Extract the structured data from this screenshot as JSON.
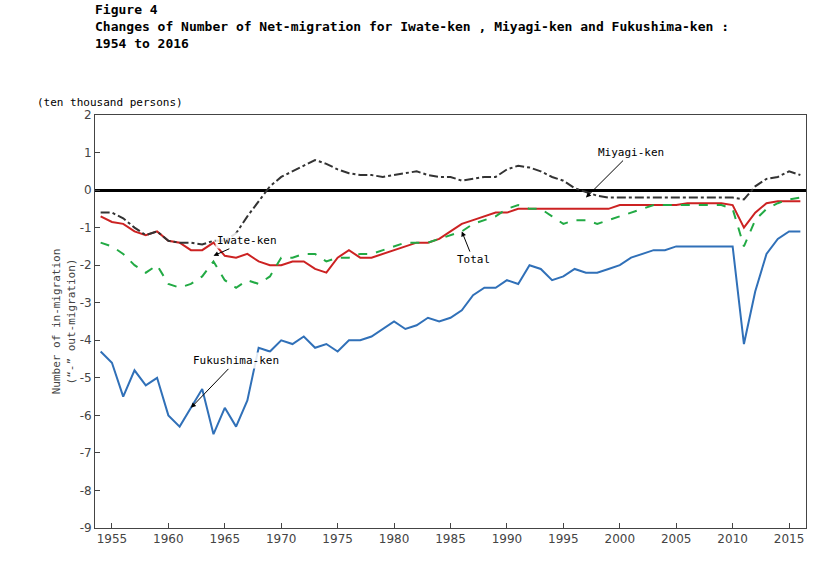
{
  "chart_data": {
    "type": "line",
    "title": "Figure 4",
    "subtitle": [
      "Changes of Number of Net-migration for Iwate-ken , Miyagi-ken and Fukushima-ken :",
      "1954 to 2016"
    ],
    "ylabel": [
      "Number of in-migration",
      "(“-” out-migration)"
    ],
    "x": [
      1954,
      1955,
      1956,
      1957,
      1958,
      1959,
      1960,
      1961,
      1962,
      1963,
      1964,
      1965,
      1966,
      1967,
      1968,
      1969,
      1970,
      1971,
      1972,
      1973,
      1974,
      1975,
      1976,
      1977,
      1978,
      1979,
      1980,
      1981,
      1982,
      1983,
      1984,
      1985,
      1986,
      1987,
      1988,
      1989,
      1990,
      1991,
      1992,
      1993,
      1994,
      1995,
      1996,
      1997,
      1998,
      1999,
      2000,
      2001,
      2002,
      2003,
      2004,
      2005,
      2006,
      2007,
      2008,
      2009,
      2010,
      2011,
      2012,
      2013,
      2014,
      2015,
      2016
    ],
    "series": [
      {
        "name": "Fukushima-ken",
        "color": "#3070B8",
        "line_style": "solid",
        "values": [
          -4.3,
          -4.6,
          -5.5,
          -4.8,
          -5.2,
          -5.0,
          -6.0,
          -6.3,
          -5.8,
          -5.3,
          -6.5,
          -5.8,
          -6.3,
          -5.6,
          -4.2,
          -4.3,
          -4.0,
          -4.1,
          -3.9,
          -4.2,
          -4.1,
          -4.3,
          -4.0,
          -4.0,
          -3.9,
          -3.7,
          -3.5,
          -3.7,
          -3.6,
          -3.4,
          -3.5,
          -3.4,
          -3.2,
          -2.8,
          -2.6,
          -2.6,
          -2.4,
          -2.5,
          -2.0,
          -2.1,
          -2.4,
          -2.3,
          -2.1,
          -2.2,
          -2.2,
          -2.1,
          -2.0,
          -1.8,
          -1.7,
          -1.6,
          -1.6,
          -1.5,
          -1.5,
          -1.5,
          -1.5,
          -1.5,
          -1.5,
          -4.1,
          -2.7,
          -1.7,
          -1.3,
          -1.1,
          -1.1
        ]
      },
      {
        "name": "Iwate-ken",
        "color": "#CC2222",
        "line_style": "solid",
        "values": [
          -0.7,
          -0.85,
          -0.9,
          -1.1,
          -1.2,
          -1.1,
          -1.35,
          -1.4,
          -1.6,
          -1.6,
          -1.4,
          -1.75,
          -1.8,
          -1.7,
          -1.9,
          -2.0,
          -2.0,
          -1.9,
          -1.9,
          -2.1,
          -2.2,
          -1.8,
          -1.6,
          -1.8,
          -1.8,
          -1.7,
          -1.6,
          -1.5,
          -1.4,
          -1.4,
          -1.3,
          -1.1,
          -0.9,
          -0.8,
          -0.7,
          -0.6,
          -0.6,
          -0.5,
          -0.5,
          -0.5,
          -0.5,
          -0.5,
          -0.5,
          -0.5,
          -0.5,
          -0.5,
          -0.4,
          -0.4,
          -0.4,
          -0.4,
          -0.4,
          -0.4,
          -0.35,
          -0.35,
          -0.35,
          -0.35,
          -0.4,
          -1.0,
          -0.6,
          -0.35,
          -0.3,
          -0.3,
          -0.3
        ]
      },
      {
        "name": "Miyagi-ken",
        "color": "#333333",
        "line_style": "dashdot",
        "values": [
          -0.6,
          -0.6,
          -0.75,
          -1.0,
          -1.2,
          -1.1,
          -1.35,
          -1.4,
          -1.4,
          -1.45,
          -1.35,
          -1.35,
          -1.15,
          -0.7,
          -0.3,
          0.1,
          0.35,
          0.5,
          0.65,
          0.8,
          0.7,
          0.55,
          0.45,
          0.4,
          0.4,
          0.35,
          0.4,
          0.45,
          0.5,
          0.4,
          0.35,
          0.35,
          0.25,
          0.3,
          0.35,
          0.35,
          0.55,
          0.65,
          0.6,
          0.5,
          0.35,
          0.25,
          0.05,
          -0.05,
          -0.15,
          -0.2,
          -0.2,
          -0.2,
          -0.2,
          -0.2,
          -0.2,
          -0.2,
          -0.2,
          -0.2,
          -0.2,
          -0.2,
          -0.2,
          -0.25,
          0.1,
          0.3,
          0.35,
          0.5,
          0.4
        ]
      },
      {
        "name": "Total",
        "color": "#22AA44",
        "line_style": "dash",
        "values": [
          -1.4,
          -1.5,
          -1.7,
          -2.0,
          -2.2,
          -2.0,
          -2.5,
          -2.6,
          -2.5,
          -2.3,
          -1.9,
          -2.4,
          -2.6,
          -2.4,
          -2.5,
          -2.3,
          -1.8,
          -1.8,
          -1.7,
          -1.7,
          -1.9,
          -1.8,
          -1.8,
          -1.7,
          -1.7,
          -1.6,
          -1.5,
          -1.4,
          -1.4,
          -1.4,
          -1.3,
          -1.2,
          -1.1,
          -0.9,
          -0.8,
          -0.7,
          -0.5,
          -0.4,
          -0.5,
          -0.5,
          -0.7,
          -0.9,
          -0.8,
          -0.8,
          -0.9,
          -0.8,
          -0.7,
          -0.6,
          -0.5,
          -0.4,
          -0.4,
          -0.4,
          -0.4,
          -0.4,
          -0.4,
          -0.4,
          -0.5,
          -1.5,
          -0.8,
          -0.5,
          -0.35,
          -0.25,
          -0.2
        ]
      }
    ],
    "xlim": [
      1953.5,
      2016.5
    ],
    "ylim": [
      -9,
      2
    ],
    "xticks": [
      1955,
      1960,
      1965,
      1970,
      1975,
      1980,
      1985,
      1990,
      1995,
      2000,
      2005,
      2010,
      2015
    ],
    "yticks": [
      -9,
      -8,
      -7,
      -6,
      -5,
      -4,
      -3,
      -2,
      -1,
      0,
      1,
      2
    ],
    "grid": false,
    "legend": "none",
    "annotations": [
      {
        "text": "(ten thousand persons)"
      },
      {
        "text": "Miyagi-ken",
        "x": 1997,
        "y": -0.2,
        "text_x": 2001,
        "text_y": 1.0
      },
      {
        "text": "Iwate-ken",
        "x": 1964,
        "y": -1.75,
        "text_x": 1967,
        "text_y": -1.35
      },
      {
        "text": "Fukushima-ken",
        "x": 1962,
        "y": -5.8,
        "text_x": 1966,
        "text_y": -4.55
      },
      {
        "text": "Total",
        "x": 1986,
        "y": -1.1,
        "text_x": 1987,
        "text_y": -1.85
      }
    ]
  }
}
